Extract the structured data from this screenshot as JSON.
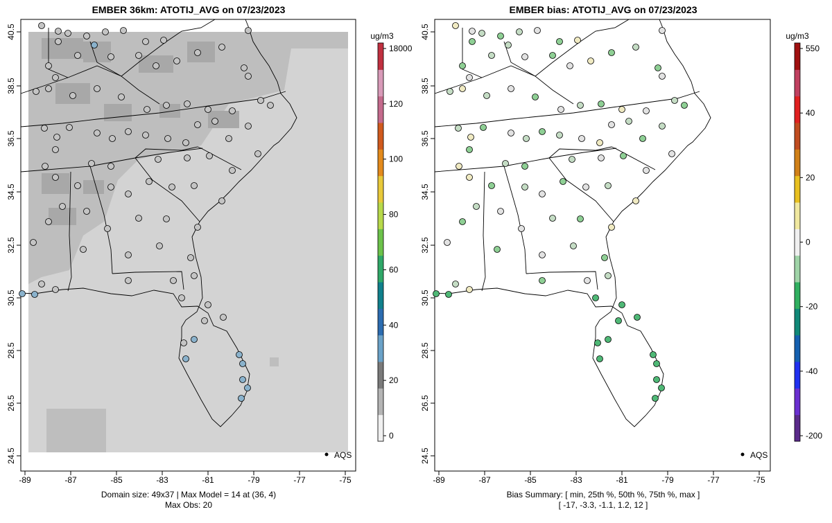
{
  "panels": [
    {
      "title": "EMBER 36km: ATOTIJ_AVG on 07/23/2023",
      "footer_line1": "Domain size: 49x37 | Max Model = 14 at (36, 4)",
      "footer_line2": "Max Obs: 20",
      "legend_label": "AQS",
      "colorbar_unit": "ug/m3",
      "colorbar_ticks": [
        "18000",
        "120",
        "100",
        "80",
        "60",
        "40",
        "20",
        "0"
      ],
      "colorbar_colors": [
        "#f0f0f0",
        "#b4b4b4",
        "#7a7a7a",
        "#6aa2c8",
        "#2b6cb0",
        "#10808c",
        "#2fa868",
        "#6cc24a",
        "#b7d94a",
        "#e8c93a",
        "#e38a1c",
        "#d05a1e",
        "#c46a8c",
        "#d89ab8",
        "#c03040"
      ]
    },
    {
      "title": "EMBER bias: ATOTIJ_AVG on 07/23/2023",
      "footer_line1": "Bias Summary: [ min, 25th %, 50th %, 75th %, max ]",
      "footer_line2": "[ -17,   -3.3,   -1.1,   1.2,   12 ]",
      "legend_label": "AQS",
      "colorbar_unit": "ug/m3",
      "colorbar_ticks": [
        "550",
        "40",
        "20",
        "0",
        "-20",
        "-40",
        "-200"
      ],
      "colorbar_colors": [
        "#5a2a8a",
        "#6a2fd0",
        "#2030f0",
        "#1560b0",
        "#108878",
        "#30b060",
        "#a0d4a8",
        "#f0f0f0",
        "#f0e8a0",
        "#e8c020",
        "#d08018",
        "#c04c20",
        "#e02020",
        "#c04060",
        "#a01010"
      ]
    }
  ],
  "axes": {
    "x_ticks": [
      "-89",
      "-87",
      "-85",
      "-83",
      "-81",
      "-79",
      "-77",
      "-75"
    ],
    "y_ticks": [
      "40.5",
      "38.5",
      "36.5",
      "34.5",
      "32.5",
      "30.5",
      "28.5",
      "26.5",
      "24.5"
    ],
    "lon_range": [
      -89.2,
      -74.6
    ],
    "lat_range": [
      24.2,
      40.8
    ]
  },
  "colors": {
    "model_background": "#d3d3d3",
    "model_mid": "#bebebe",
    "model_dark": "#a8a8a8",
    "obs_gray": "#c4c4c4",
    "obs_blue": "#8ab2cc",
    "bias_neutral": "#e2e2e2",
    "bias_green_light": "#c4dcc4",
    "bias_green": "#8ecf94",
    "bias_green_dark": "#4fb876",
    "bias_yellow": "#f0eac2"
  }
}
